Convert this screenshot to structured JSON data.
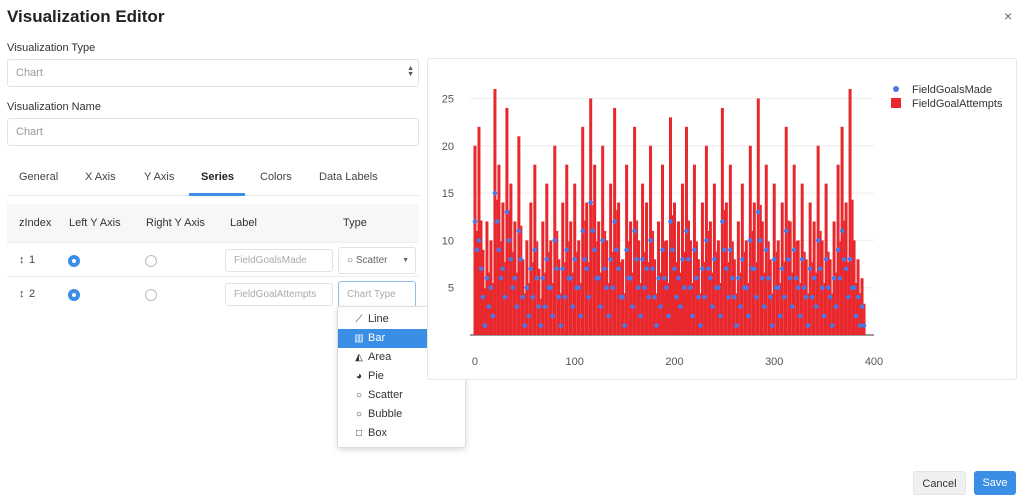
{
  "dialog": {
    "title": "Visualization Editor",
    "close_glyph": "×"
  },
  "form": {
    "type_label": "Visualization Type",
    "type_value": "Chart",
    "name_label": "Visualization Name",
    "name_value": "Chart"
  },
  "tabs": [
    {
      "label": "General"
    },
    {
      "label": "X Axis"
    },
    {
      "label": "Y Axis"
    },
    {
      "label": "Series",
      "active": true
    },
    {
      "label": "Colors"
    },
    {
      "label": "Data Labels"
    }
  ],
  "series_table": {
    "headers": [
      "zIndex",
      "Left Y Axis",
      "Right Y Axis",
      "Label",
      "Type"
    ],
    "rows": [
      {
        "zindex": "1",
        "left_axis": true,
        "right_axis": false,
        "label_placeholder": "FieldGoalsMade",
        "type": "Scatter"
      },
      {
        "zindex": "2",
        "left_axis": true,
        "right_axis": false,
        "label_placeholder": "FieldGoalAttempts",
        "type_placeholder": "Chart Type"
      }
    ]
  },
  "type_dropdown": {
    "options": [
      {
        "label": "Line",
        "icon": "line-chart-icon",
        "glyph": "📈"
      },
      {
        "label": "Bar",
        "icon": "bar-chart-icon",
        "glyph": "▥",
        "selected": true
      },
      {
        "label": "Area",
        "icon": "area-chart-icon",
        "glyph": "◭"
      },
      {
        "label": "Pie",
        "icon": "pie-chart-icon",
        "glyph": "◕"
      },
      {
        "label": "Scatter",
        "icon": "circle-icon",
        "glyph": "○"
      },
      {
        "label": "Bubble",
        "icon": "circle-icon",
        "glyph": "○"
      },
      {
        "label": "Box",
        "icon": "square-icon",
        "glyph": "□"
      }
    ]
  },
  "buttons": {
    "cancel": "Cancel",
    "save": "Save"
  },
  "colors": {
    "accent": "#3a8ee6",
    "bar_series": "#e8282c",
    "scatter_series": "#4a78e8"
  },
  "chart_data": {
    "type": "bar",
    "xlim": [
      -5,
      400
    ],
    "ylim": [
      0,
      26
    ],
    "x_ticks": [
      0,
      100,
      200,
      300,
      400
    ],
    "y_ticks": [
      5,
      10,
      15,
      20,
      25
    ],
    "grid": true,
    "legend_position": "top-right",
    "series": [
      {
        "name": "FieldGoalsMade",
        "type": "scatter",
        "color": "#4a78e8",
        "x": [
          0,
          4,
          8,
          12,
          16,
          20,
          24,
          28,
          32,
          36,
          40,
          44,
          48,
          52,
          56,
          60,
          64,
          68,
          72,
          76,
          80,
          84,
          88,
          92,
          96,
          100,
          104,
          108,
          112,
          116,
          120,
          124,
          128,
          132,
          136,
          140,
          144,
          148,
          152,
          156,
          160,
          164,
          168,
          172,
          176,
          180,
          184,
          188,
          192,
          196,
          200,
          204,
          208,
          212,
          216,
          220,
          224,
          228,
          232,
          236,
          240,
          244,
          248,
          252,
          256,
          260,
          264,
          268,
          272,
          276,
          280,
          284,
          288,
          292,
          296,
          300,
          304,
          308,
          312,
          316,
          320,
          324,
          328,
          332,
          336,
          340,
          344,
          348,
          352,
          356,
          360,
          364,
          368,
          372,
          376,
          380,
          384,
          388
        ],
        "values": [
          12,
          10,
          4,
          6,
          5,
          15,
          9,
          7,
          13,
          8,
          6,
          11,
          4,
          5,
          7,
          9,
          3,
          6,
          8,
          5,
          10,
          4,
          7,
          9,
          6,
          8,
          5,
          11,
          7,
          14,
          9,
          6,
          10,
          5,
          8,
          12,
          7,
          4,
          9,
          6,
          11,
          5,
          8,
          7,
          10,
          4,
          6,
          9,
          5,
          12,
          7,
          6,
          8,
          11,
          5,
          9,
          4,
          7,
          10,
          6,
          8,
          5,
          12,
          7,
          9,
          4,
          6,
          8,
          5,
          10,
          7,
          13,
          6,
          9,
          4,
          8,
          5,
          7,
          11,
          6,
          9,
          5,
          8,
          4,
          7,
          6,
          10,
          5,
          8,
          4,
          6,
          9,
          11,
          7,
          8,
          5,
          4,
          3
        ]
      },
      {
        "name": "FieldGoalAttempts",
        "type": "bar",
        "color": "#e8282c",
        "x": [
          0,
          4,
          8,
          12,
          16,
          20,
          24,
          28,
          32,
          36,
          40,
          44,
          48,
          52,
          56,
          60,
          64,
          68,
          72,
          76,
          80,
          84,
          88,
          92,
          96,
          100,
          104,
          108,
          112,
          116,
          120,
          124,
          128,
          132,
          136,
          140,
          144,
          148,
          152,
          156,
          160,
          164,
          168,
          172,
          176,
          180,
          184,
          188,
          192,
          196,
          200,
          204,
          208,
          212,
          216,
          220,
          224,
          228,
          232,
          236,
          240,
          244,
          248,
          252,
          256,
          260,
          264,
          268,
          272,
          276,
          280,
          284,
          288,
          292,
          296,
          300,
          304,
          308,
          312,
          316,
          320,
          324,
          328,
          332,
          336,
          340,
          344,
          348,
          352,
          356,
          360,
          364,
          368,
          372,
          376,
          380,
          384,
          388
        ],
        "values": [
          20,
          22,
          9,
          12,
          10,
          26,
          18,
          14,
          24,
          16,
          12,
          21,
          8,
          10,
          14,
          18,
          7,
          12,
          16,
          10,
          20,
          8,
          14,
          18,
          12,
          16,
          10,
          22,
          14,
          25,
          18,
          12,
          20,
          10,
          16,
          24,
          14,
          8,
          18,
          12,
          22,
          10,
          16,
          14,
          20,
          8,
          12,
          18,
          10,
          23,
          14,
          12,
          16,
          22,
          10,
          18,
          8,
          14,
          20,
          12,
          16,
          10,
          24,
          14,
          18,
          8,
          12,
          16,
          10,
          20,
          14,
          25,
          12,
          18,
          8,
          16,
          10,
          14,
          22,
          12,
          18,
          10,
          16,
          8,
          14,
          12,
          20,
          10,
          16,
          8,
          12,
          18,
          22,
          14,
          26,
          10,
          8,
          6
        ]
      }
    ]
  }
}
